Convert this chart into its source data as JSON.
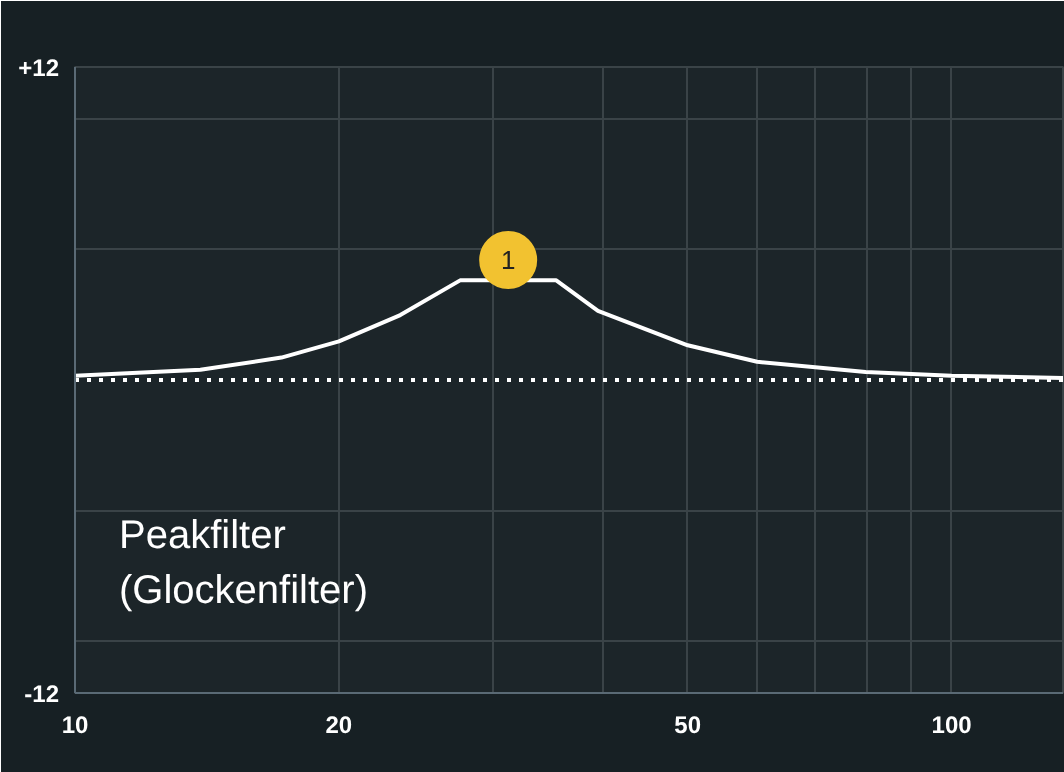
{
  "chart_data": {
    "type": "line",
    "x": [
      10,
      13.9,
      17.2,
      20,
      23.5,
      27.5,
      31.2,
      35.4,
      39.5,
      50,
      60,
      79.8,
      100,
      134
    ],
    "series": [
      {
        "color": "#ffffff",
        "values": [
          0.16,
          0.39,
          0.86,
          1.48,
          2.49,
          3.82,
          null,
          3.82,
          2.65,
          1.33,
          0.7,
          0.31,
          0.16,
          0.08
        ]
      },
      {
        "type": "scatter",
        "x": [
          31.2
        ],
        "color": "#f2c230",
        "values": [
          4.6
        ],
        "marker": "circle"
      }
    ],
    "xlim": [
      10,
      134
    ],
    "ylim": [
      -12,
      12
    ],
    "xticks": [
      10,
      20,
      {
        "value": 30,
        "label": null
      },
      {
        "value": 40,
        "label": null
      },
      50,
      {
        "value": 60,
        "label": null
      },
      {
        "value": 70,
        "label": null
      },
      {
        "value": 80,
        "label": null
      },
      {
        "value": 90,
        "label": null
      },
      100
    ],
    "yticks": [
      -12,
      {
        "value": -10,
        "label": null
      },
      {
        "value": -5,
        "label": null
      },
      {
        "value": 5,
        "label": null
      },
      {
        "value": 10,
        "label": null
      },
      {
        "value": 12,
        "label": "+12"
      }
    ],
    "log": "x",
    "grid": true,
    "line_style": "solid",
    "ref_lines": [
      {
        "axis": "y",
        "value": 0,
        "color": "#ffffff",
        "line_style": "dotted"
      }
    ],
    "annotations": [
      {
        "text": "1",
        "x": 31.2,
        "y": 4.6
      },
      "Peakfilter\n(Glockenfilter)"
    ]
  }
}
